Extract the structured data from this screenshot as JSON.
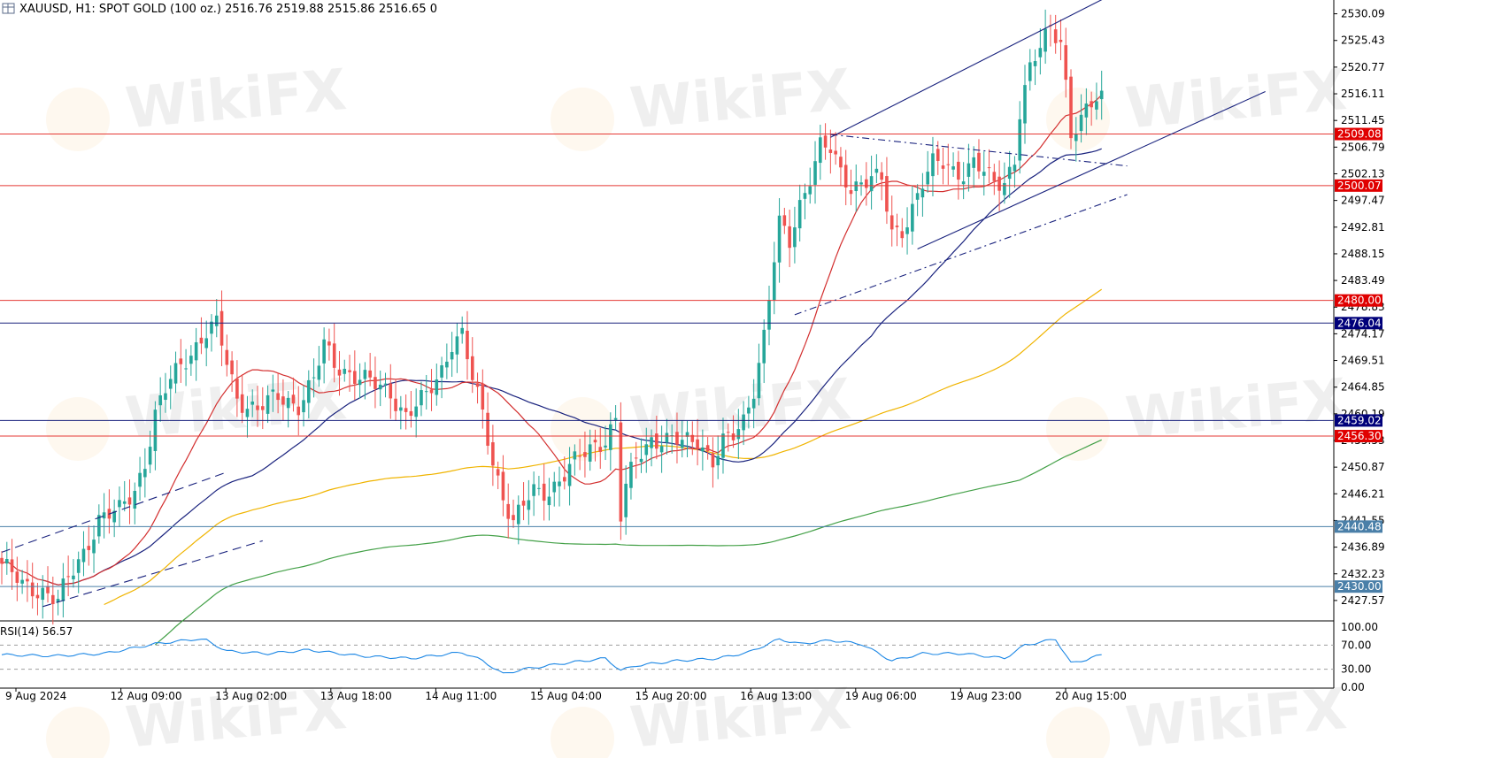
{
  "header": {
    "symbol": "XAUUSD",
    "timeframe": "H1",
    "description": "SPOT GOLD (100 oz.)",
    "ohlc": "2516.76 2519.88 2515.86 2516.65",
    "volume": "0"
  },
  "watermark": "WikiFX",
  "colors": {
    "bull": "#26a69a",
    "bear": "#ef5350",
    "ma_fast": "#d32f2f",
    "ma_mid": "#1a237e",
    "ma_slow": "#f0b400",
    "ma_long": "#43a047",
    "rsi": "#1e88e5",
    "level_red": "#e53935",
    "level_blue": "#1a237e",
    "level_steel": "#4a7fa8",
    "trend": "#1a237e"
  },
  "chart_data": [
    {
      "type": "candlestick",
      "symbol": "XAUUSD",
      "timeframe": "H1",
      "y_ticks": [
        "2530.09",
        "2525.43",
        "2520.77",
        "2516.11",
        "2511.45",
        "2506.79",
        "2502.13",
        "2497.47",
        "2492.81",
        "2488.15",
        "2483.49",
        "2478.83",
        "2474.17",
        "2469.51",
        "2464.85",
        "2460.19",
        "2455.53",
        "2450.87",
        "2446.21",
        "2441.55",
        "2436.89",
        "2432.23",
        "2427.57"
      ],
      "x_ticks": [
        "9 Aug 2024",
        "12 Aug 09:00",
        "13 Aug 02:00",
        "13 Aug 18:00",
        "14 Aug 11:00",
        "15 Aug 04:00",
        "15 Aug 20:00",
        "16 Aug 13:00",
        "19 Aug 06:00",
        "19 Aug 23:00",
        "20 Aug 15:00"
      ],
      "price_range": [
        2424.0,
        2532.5
      ],
      "bar_count": 216,
      "horizontal_levels": [
        {
          "value": 2509.08,
          "label": "2509.08",
          "color": "red"
        },
        {
          "value": 2500.07,
          "label": "2500.07",
          "color": "red"
        },
        {
          "value": 2480.0,
          "label": "2480.00",
          "color": "red"
        },
        {
          "value": 2476.04,
          "label": "2476.04",
          "color": "blue"
        },
        {
          "value": 2459.02,
          "label": "2459.02",
          "color": "blue"
        },
        {
          "value": 2456.3,
          "label": "2456.30",
          "color": "red"
        },
        {
          "value": 2440.48,
          "label": "2440.48",
          "color": "steel"
        },
        {
          "value": 2430.0,
          "label": "2430.00",
          "color": "steel"
        }
      ],
      "close_path": [
        [
          0,
          2434.0
        ],
        [
          4,
          2430.0
        ],
        [
          8,
          2429.5
        ],
        [
          11,
          2427.5
        ],
        [
          13,
          2431.0
        ],
        [
          16,
          2436.0
        ],
        [
          19,
          2442.0
        ],
        [
          23,
          2443.0
        ],
        [
          26,
          2447.0
        ],
        [
          28,
          2452.0
        ],
        [
          30,
          2460.0
        ],
        [
          33,
          2466.0
        ],
        [
          36,
          2470.0
        ],
        [
          40,
          2474.5
        ],
        [
          42,
          2475.5
        ],
        [
          44,
          2469.0
        ],
        [
          46,
          2463.0
        ],
        [
          50,
          2461.0
        ],
        [
          54,
          2463.0
        ],
        [
          58,
          2462.0
        ],
        [
          61,
          2466.0
        ],
        [
          63,
          2472.0
        ],
        [
          65,
          2469.0
        ],
        [
          69,
          2467.0
        ],
        [
          73,
          2465.0
        ],
        [
          76,
          2464.0
        ],
        [
          79,
          2460.0
        ],
        [
          83,
          2463.0
        ],
        [
          86,
          2468.0
        ],
        [
          88,
          2473.0
        ],
        [
          90,
          2474.0
        ],
        [
          92,
          2466.0
        ],
        [
          94,
          2460.0
        ],
        [
          96,
          2452.0
        ],
        [
          98,
          2446.0
        ],
        [
          100,
          2441.0
        ],
        [
          102,
          2444.0
        ],
        [
          104,
          2446.5
        ],
        [
          107,
          2447.0
        ],
        [
          110,
          2449.5
        ],
        [
          113,
          2452.5
        ],
        [
          116,
          2455.0
        ],
        [
          118,
          2456.0
        ],
        [
          120,
          2459.0
        ],
        [
          121,
          2442.0
        ],
        [
          122,
          2447.0
        ],
        [
          124,
          2452.5
        ],
        [
          127,
          2456.0
        ],
        [
          130,
          2455.5
        ],
        [
          133,
          2455.0
        ],
        [
          136,
          2456.0
        ],
        [
          139,
          2452.0
        ],
        [
          141,
          2455.0
        ],
        [
          143,
          2456.0
        ],
        [
          145,
          2459.0
        ],
        [
          147,
          2465.0
        ],
        [
          149,
          2474.0
        ],
        [
          151,
          2487.0
        ],
        [
          152,
          2493.0
        ],
        [
          154,
          2490.0
        ],
        [
          156,
          2497.0
        ],
        [
          158,
          2502.0
        ],
        [
          160,
          2507.0
        ],
        [
          162,
          2506.0
        ],
        [
          164,
          2502.0
        ],
        [
          166,
          2500.0
        ],
        [
          168,
          2501.0
        ],
        [
          170,
          2501.5
        ],
        [
          172,
          2500.5
        ],
        [
          174,
          2491.5
        ],
        [
          176,
          2492.5
        ],
        [
          178,
          2496.5
        ],
        [
          180,
          2500.5
        ],
        [
          182,
          2503.5
        ],
        [
          184,
          2504.0
        ],
        [
          186,
          2503.0
        ],
        [
          188,
          2502.5
        ],
        [
          190,
          2504.0
        ],
        [
          192,
          2502.0
        ],
        [
          194,
          2500.5
        ],
        [
          196,
          2501.0
        ],
        [
          198,
          2505.0
        ],
        [
          199,
          2513.0
        ],
        [
          201,
          2520.0
        ],
        [
          203,
          2524.0
        ],
        [
          205,
          2528.0
        ],
        [
          207,
          2526.0
        ],
        [
          208,
          2518.0
        ],
        [
          209,
          2509.0
        ],
        [
          211,
          2511.0
        ],
        [
          213,
          2514.0
        ],
        [
          215,
          2516.65
        ]
      ],
      "trendlines": [
        {
          "style": "solid",
          "from": [
            162,
            2508.5
          ],
          "to": [
            216,
            2533.0
          ]
        },
        {
          "style": "solid",
          "from": [
            179,
            2489.0
          ],
          "to": [
            247,
            2516.5
          ]
        },
        {
          "style": "dash-dot",
          "from": [
            162,
            2509.0
          ],
          "to": [
            220,
            2503.5
          ]
        },
        {
          "style": "dash-dot",
          "from": [
            155,
            2477.5
          ],
          "to": [
            220,
            2498.5
          ]
        },
        {
          "style": "dashed",
          "from": [
            0,
            2436.0
          ],
          "to": [
            44,
            2450.0
          ]
        },
        {
          "style": "dashed",
          "from": [
            8,
            2426.5
          ],
          "to": [
            51,
            2438.0
          ]
        }
      ],
      "rsi": {
        "label": "RSI(14)",
        "value": "56.57",
        "levels": [
          70,
          30
        ],
        "y_ticks": [
          "100.00",
          "70.00",
          "30.00",
          "0.00"
        ],
        "path": [
          [
            0,
            54
          ],
          [
            10,
            52
          ],
          [
            20,
            56
          ],
          [
            30,
            72
          ],
          [
            38,
            80
          ],
          [
            40,
            78
          ],
          [
            44,
            60
          ],
          [
            52,
            56
          ],
          [
            60,
            62
          ],
          [
            70,
            52
          ],
          [
            80,
            48
          ],
          [
            90,
            58
          ],
          [
            94,
            44
          ],
          [
            98,
            22
          ],
          [
            102,
            30
          ],
          [
            110,
            40
          ],
          [
            118,
            48
          ],
          [
            121,
            28
          ],
          [
            124,
            36
          ],
          [
            132,
            44
          ],
          [
            140,
            48
          ],
          [
            146,
            58
          ],
          [
            152,
            80
          ],
          [
            156,
            72
          ],
          [
            162,
            78
          ],
          [
            168,
            72
          ],
          [
            174,
            44
          ],
          [
            180,
            56
          ],
          [
            188,
            56
          ],
          [
            196,
            48
          ],
          [
            200,
            70
          ],
          [
            206,
            80
          ],
          [
            209,
            40
          ],
          [
            212,
            46
          ],
          [
            216,
            56.57
          ]
        ]
      }
    }
  ]
}
